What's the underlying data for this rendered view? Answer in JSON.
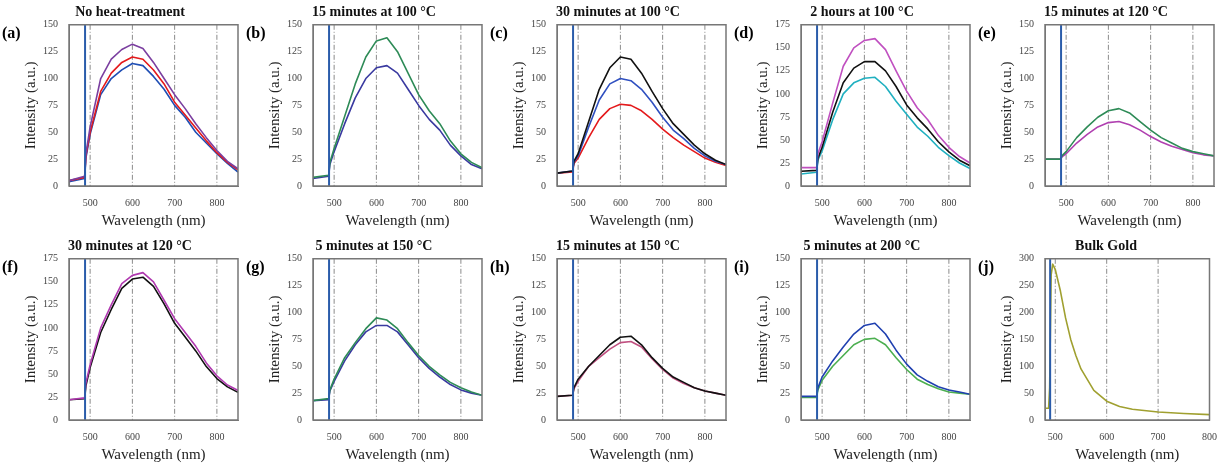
{
  "chart_data": [
    {
      "type": "line",
      "title": "No heat-treatment",
      "xlabel": "Wavelength (nm)",
      "ylabel": "Intensity (a.u.)",
      "annotations": [
        "(a)"
      ],
      "grid": "x",
      "xlim": [
        450,
        850
      ],
      "xticks": [
        500,
        600,
        700,
        800
      ],
      "ylim": [
        0,
        150
      ],
      "yticks": [
        0,
        25,
        50,
        75,
        100,
        125,
        150
      ],
      "ref_lines": [
        {
          "axis": "x",
          "value": 488,
          "color": "#2a5caa"
        }
      ],
      "x": [
        450,
        487,
        490,
        500,
        525,
        550,
        575,
        600,
        625,
        650,
        675,
        700,
        725,
        750,
        775,
        800,
        825,
        850
      ],
      "series": [
        {
          "color": "#7b3fa0",
          "values": [
            5,
            9,
            30,
            55,
            100,
            118,
            127,
            132,
            128,
            115,
            100,
            85,
            72,
            58,
            45,
            33,
            23,
            16
          ]
        },
        {
          "color": "#e41a1c",
          "values": [
            5,
            8,
            28,
            50,
            88,
            105,
            115,
            120,
            118,
            108,
            95,
            78,
            66,
            54,
            42,
            31,
            22,
            15
          ]
        },
        {
          "color": "#1f4eb4",
          "values": [
            4,
            7,
            26,
            48,
            85,
            100,
            108,
            114,
            112,
            102,
            90,
            75,
            64,
            50,
            40,
            30,
            21,
            13
          ]
        }
      ]
    },
    {
      "type": "line",
      "title": "15 minutes at 100 °C",
      "xlabel": "Wavelength (nm)",
      "ylabel": "Intensity (a.u.)",
      "annotations": [
        "(b)"
      ],
      "grid": "x",
      "xlim": [
        450,
        850
      ],
      "xticks": [
        500,
        600,
        700,
        800
      ],
      "ylim": [
        0,
        150
      ],
      "yticks": [
        0,
        25,
        50,
        75,
        100,
        125,
        150
      ],
      "ref_lines": [
        {
          "axis": "x",
          "value": 488,
          "color": "#2a5caa"
        }
      ],
      "x": [
        450,
        487,
        490,
        500,
        525,
        550,
        575,
        600,
        625,
        650,
        675,
        700,
        725,
        750,
        775,
        800,
        825,
        850
      ],
      "series": [
        {
          "color": "#2e8b57",
          "values": [
            8,
            10,
            22,
            35,
            65,
            95,
            120,
            135,
            138,
            125,
            105,
            85,
            70,
            58,
            42,
            30,
            22,
            17
          ]
        },
        {
          "color": "#3a3aa0",
          "values": [
            7,
            9,
            20,
            32,
            58,
            82,
            100,
            110,
            112,
            105,
            90,
            75,
            62,
            52,
            38,
            28,
            20,
            16
          ]
        }
      ]
    },
    {
      "type": "line",
      "title": "30 minutes at 100 °C",
      "xlabel": "Wavelength (nm)",
      "ylabel": "Intensity (a.u.)",
      "annotations": [
        "(c)"
      ],
      "grid": "x",
      "xlim": [
        450,
        850
      ],
      "xticks": [
        500,
        600,
        700,
        800
      ],
      "ylim": [
        0,
        150
      ],
      "yticks": [
        0,
        25,
        50,
        75,
        100,
        125,
        150
      ],
      "ref_lines": [
        {
          "axis": "x",
          "value": 488,
          "color": "#2a5caa"
        }
      ],
      "x": [
        450,
        487,
        490,
        500,
        525,
        550,
        575,
        600,
        625,
        650,
        675,
        700,
        725,
        750,
        775,
        800,
        825,
        850
      ],
      "series": [
        {
          "color": "#111111",
          "values": [
            12,
            14,
            23,
            30,
            60,
            90,
            110,
            120,
            118,
            105,
            88,
            72,
            58,
            48,
            38,
            30,
            24,
            20
          ]
        },
        {
          "color": "#3050c0",
          "values": [
            12,
            14,
            22,
            28,
            55,
            80,
            95,
            100,
            98,
            90,
            78,
            64,
            52,
            44,
            35,
            28,
            23,
            20
          ]
        },
        {
          "color": "#e41a1c",
          "values": [
            12,
            13,
            21,
            26,
            45,
            62,
            72,
            76,
            75,
            70,
            62,
            53,
            45,
            38,
            32,
            26,
            22,
            19
          ]
        }
      ]
    },
    {
      "type": "line",
      "title": "2 hours at 100 °C",
      "xlabel": "Wavelength (nm)",
      "ylabel": "Intensity (a.u.)",
      "annotations": [
        "(d)"
      ],
      "grid": "x",
      "xlim": [
        450,
        850
      ],
      "xticks": [
        500,
        600,
        700,
        800
      ],
      "ylim": [
        0,
        175
      ],
      "yticks": [
        0,
        25,
        50,
        75,
        100,
        125,
        150,
        175
      ],
      "ref_lines": [
        {
          "axis": "x",
          "value": 488,
          "color": "#2a5caa"
        }
      ],
      "x": [
        450,
        487,
        490,
        500,
        525,
        550,
        575,
        600,
        625,
        650,
        675,
        700,
        725,
        750,
        775,
        800,
        825,
        850
      ],
      "series": [
        {
          "color": "#c050c0",
          "values": [
            20,
            20,
            35,
            48,
            90,
            130,
            150,
            158,
            160,
            148,
            125,
            103,
            85,
            72,
            55,
            42,
            32,
            25
          ]
        },
        {
          "color": "#111111",
          "values": [
            16,
            17,
            30,
            42,
            80,
            112,
            128,
            135,
            135,
            125,
            108,
            88,
            74,
            62,
            48,
            37,
            28,
            22
          ]
        },
        {
          "color": "#20b0c0",
          "values": [
            13,
            15,
            28,
            38,
            72,
            100,
            112,
            117,
            118,
            108,
            92,
            78,
            64,
            54,
            42,
            33,
            25,
            19
          ]
        }
      ]
    },
    {
      "type": "line",
      "title": "15 minutes at 120 °C",
      "xlabel": "Wavelength (nm)",
      "ylabel": "Intensity (a.u.)",
      "annotations": [
        "(e)"
      ],
      "grid": "x",
      "xlim": [
        450,
        850
      ],
      "xticks": [
        500,
        600,
        700,
        800
      ],
      "ylim": [
        0,
        150
      ],
      "yticks": [
        0,
        25,
        50,
        75,
        100,
        125,
        150
      ],
      "ref_lines": [
        {
          "axis": "x",
          "value": 488,
          "color": "#2a5caa"
        }
      ],
      "x": [
        450,
        487,
        490,
        500,
        525,
        550,
        575,
        600,
        625,
        650,
        675,
        700,
        725,
        750,
        775,
        800,
        825,
        850
      ],
      "series": [
        {
          "color": "#2e8b57",
          "values": [
            25,
            25,
            28,
            32,
            45,
            55,
            64,
            70,
            72,
            68,
            60,
            52,
            45,
            40,
            35,
            32,
            30,
            28
          ]
        },
        {
          "color": "#b040b0",
          "values": [
            25,
            25,
            27,
            30,
            40,
            48,
            55,
            59,
            60,
            57,
            52,
            46,
            41,
            37,
            34,
            31,
            29,
            28
          ]
        }
      ]
    },
    {
      "type": "line",
      "title": "30 minutes at 120 °C",
      "xlabel": "Wavelength (nm)",
      "ylabel": "Intensity (a.u.)",
      "annotations": [
        "(f)"
      ],
      "grid": "x",
      "xlim": [
        450,
        850
      ],
      "xticks": [
        500,
        600,
        700,
        800
      ],
      "ylim": [
        0,
        175
      ],
      "yticks": [
        0,
        25,
        50,
        75,
        100,
        125,
        150,
        175
      ],
      "ref_lines": [
        {
          "axis": "x",
          "value": 488,
          "color": "#2a5caa"
        }
      ],
      "x": [
        450,
        487,
        490,
        500,
        525,
        550,
        575,
        600,
        625,
        650,
        675,
        700,
        725,
        750,
        775,
        800,
        825,
        850
      ],
      "series": [
        {
          "color": "#b03ab0",
          "values": [
            22,
            24,
            40,
            60,
            100,
            125,
            148,
            157,
            160,
            150,
            130,
            110,
            95,
            80,
            62,
            48,
            38,
            32
          ]
        },
        {
          "color": "#111111",
          "values": [
            22,
            23,
            37,
            57,
            95,
            120,
            143,
            153,
            155,
            145,
            126,
            105,
            90,
            75,
            58,
            45,
            36,
            30
          ]
        }
      ]
    },
    {
      "type": "line",
      "title": "5 minutes at 150 °C",
      "xlabel": "Wavelength (nm)",
      "ylabel": "Intensity (a.u.)",
      "annotations": [
        "(g)"
      ],
      "grid": "x",
      "xlim": [
        450,
        850
      ],
      "xticks": [
        500,
        600,
        700,
        800
      ],
      "ylim": [
        0,
        150
      ],
      "yticks": [
        0,
        25,
        50,
        75,
        100,
        125,
        150
      ],
      "ref_lines": [
        {
          "axis": "x",
          "value": 488,
          "color": "#2a5caa"
        }
      ],
      "x": [
        450,
        487,
        490,
        500,
        525,
        550,
        575,
        600,
        625,
        650,
        675,
        700,
        725,
        750,
        775,
        800,
        825,
        850
      ],
      "series": [
        {
          "color": "#2e8b57",
          "values": [
            18,
            20,
            28,
            38,
            58,
            72,
            85,
            95,
            93,
            85,
            72,
            60,
            50,
            42,
            35,
            30,
            26,
            23
          ]
        },
        {
          "color": "#3a3aa0",
          "values": [
            18,
            19,
            27,
            36,
            55,
            70,
            82,
            88,
            88,
            82,
            70,
            58,
            48,
            40,
            33,
            28,
            25,
            23
          ]
        }
      ]
    },
    {
      "type": "line",
      "title": "15 minutes at 150 °C",
      "xlabel": "Wavelength (nm)",
      "ylabel": "Intensity (a.u.)",
      "annotations": [
        "(h)"
      ],
      "grid": "x",
      "xlim": [
        450,
        850
      ],
      "xticks": [
        500,
        600,
        700,
        800
      ],
      "ylim": [
        0,
        150
      ],
      "yticks": [
        0,
        25,
        50,
        75,
        100,
        125,
        150
      ],
      "ref_lines": [
        {
          "axis": "x",
          "value": 488,
          "color": "#2a5caa"
        }
      ],
      "x": [
        450,
        487,
        490,
        500,
        525,
        550,
        575,
        600,
        625,
        650,
        675,
        700,
        725,
        750,
        775,
        800,
        825,
        850
      ],
      "series": [
        {
          "color": "#111111",
          "values": [
            22,
            23,
            30,
            38,
            50,
            60,
            70,
            77,
            78,
            70,
            58,
            48,
            40,
            35,
            30,
            27,
            25,
            23
          ]
        },
        {
          "color": "#c05080",
          "values": [
            22,
            23,
            29,
            36,
            50,
            58,
            66,
            72,
            73,
            68,
            57,
            47,
            39,
            34,
            30,
            27,
            25,
            23
          ]
        }
      ]
    },
    {
      "type": "line",
      "title": "5 minutes at 200 °C",
      "xlabel": "Wavelength (nm)",
      "ylabel": "Intensity (a.u.)",
      "annotations": [
        "(i)"
      ],
      "grid": "x",
      "xlim": [
        450,
        850
      ],
      "xticks": [
        500,
        600,
        700,
        800
      ],
      "ylim": [
        0,
        150
      ],
      "yticks": [
        0,
        25,
        50,
        75,
        100,
        125,
        150
      ],
      "ref_lines": [
        {
          "axis": "x",
          "value": 488,
          "color": "#2a5caa"
        }
      ],
      "x": [
        450,
        487,
        490,
        500,
        525,
        550,
        575,
        600,
        625,
        650,
        675,
        700,
        725,
        750,
        775,
        800,
        825,
        850
      ],
      "series": [
        {
          "color": "#2040b0",
          "values": [
            22,
            22,
            30,
            40,
            55,
            68,
            80,
            88,
            90,
            80,
            65,
            52,
            42,
            36,
            31,
            28,
            26,
            24
          ]
        },
        {
          "color": "#4caf50",
          "values": [
            21,
            21,
            28,
            37,
            50,
            60,
            70,
            75,
            76,
            70,
            58,
            47,
            38,
            33,
            29,
            26,
            25,
            24
          ]
        }
      ]
    },
    {
      "type": "line",
      "title": "Bulk Gold",
      "xlabel": "Wavelength (nm)",
      "ylabel": "Intensity (a.u.)",
      "annotations": [
        "(j)"
      ],
      "grid": "x",
      "xlim": [
        480,
        800
      ],
      "xticks": [
        500,
        600,
        700,
        800
      ],
      "ylim": [
        0,
        300
      ],
      "yticks": [
        0,
        50,
        100,
        150,
        200,
        250,
        300
      ],
      "ref_lines": [
        {
          "axis": "x",
          "value": 490,
          "color": "#2a5caa"
        }
      ],
      "x": [
        480,
        487,
        489,
        492,
        495,
        500,
        510,
        520,
        530,
        540,
        550,
        575,
        600,
        625,
        650,
        700,
        750,
        800
      ],
      "series": [
        {
          "color": "#a0a030",
          "values": [
            22,
            22,
            60,
            270,
            290,
            280,
            240,
            190,
            150,
            120,
            95,
            55,
            35,
            25,
            20,
            15,
            12,
            10
          ]
        }
      ]
    }
  ]
}
